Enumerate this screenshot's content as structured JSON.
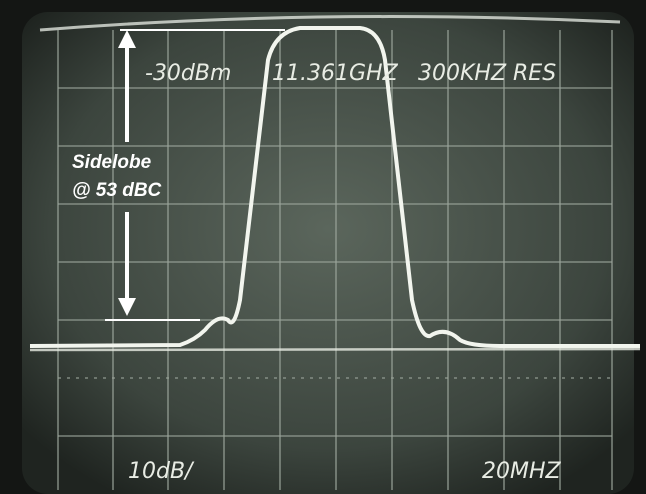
{
  "screen": {
    "header": {
      "reference_level": "-30dBm",
      "center_frequency": "11.361GHZ",
      "resolution": "300KHZ RES"
    },
    "annotation": {
      "line1": "Sidelobe",
      "line2": "@ 53 dBC"
    },
    "footer": {
      "vertical_scale": "10dB/",
      "span": "20MHZ"
    }
  }
}
